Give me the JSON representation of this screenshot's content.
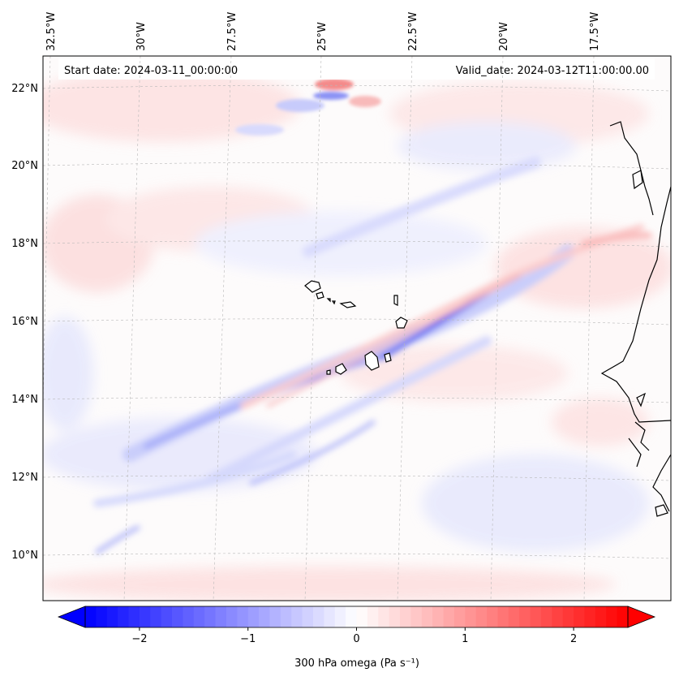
{
  "annotations": {
    "start_date": "Start date: 2024-03-11_00:00:00",
    "valid_date": "Valid_date: 2024-03-12T11:00:00.00"
  },
  "map": {
    "lon_labels": [
      "32.5°W",
      "30°W",
      "27.5°W",
      "25°W",
      "22.5°W",
      "20°W",
      "17.5°W"
    ],
    "lat_labels": [
      "22°N",
      "20°N",
      "18°N",
      "16°N",
      "14°N",
      "12°N",
      "10°N"
    ],
    "colors": {
      "frame": "#000000",
      "gridline": "#b0b0b0",
      "coastline": "#000000",
      "negative_max": "#0000ff",
      "neutral": "#ffffff",
      "positive_max": "#ff0000"
    }
  },
  "colorbar": {
    "label": "300 hPa omega (Pa s⁻¹)",
    "vmin": -2.5,
    "vmax": 2.5,
    "ticks": [
      -2,
      -1,
      0,
      1,
      2
    ],
    "tick_labels": [
      "−2",
      "−1",
      "0",
      "1",
      "2"
    ],
    "extend": "both"
  }
}
